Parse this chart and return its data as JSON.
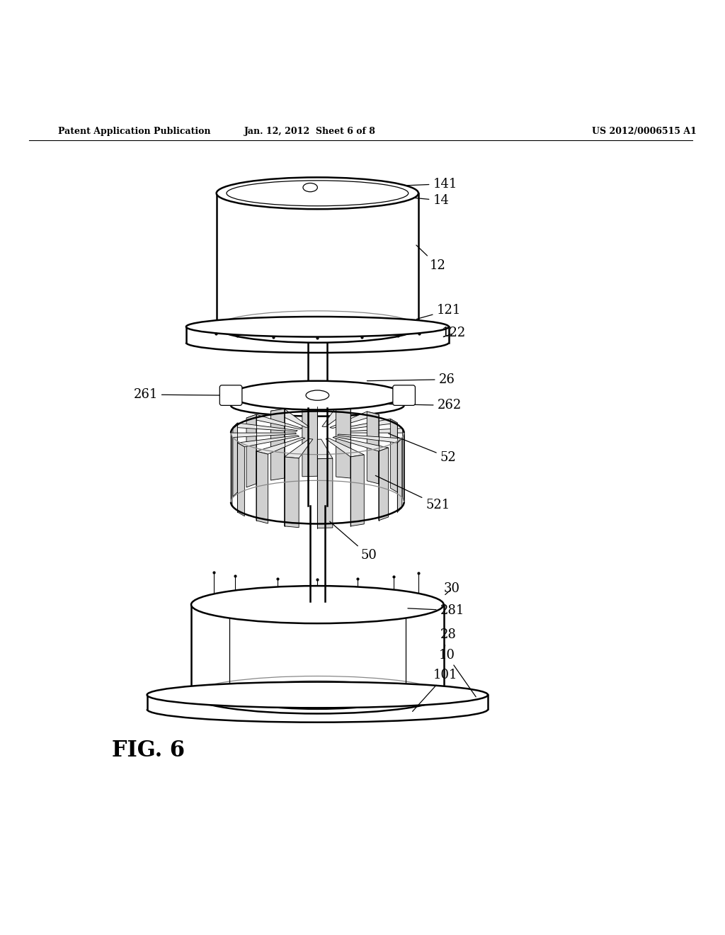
{
  "bg_color": "#ffffff",
  "line_color": "#000000",
  "header_left": "Patent Application Publication",
  "header_mid": "Jan. 12, 2012  Sheet 6 of 8",
  "header_right": "US 2012/0006515 A1",
  "figure_label": "FIG. 6",
  "title_fontsize": 11,
  "label_fontsize": 13,
  "fig_label_fontsize": 22
}
